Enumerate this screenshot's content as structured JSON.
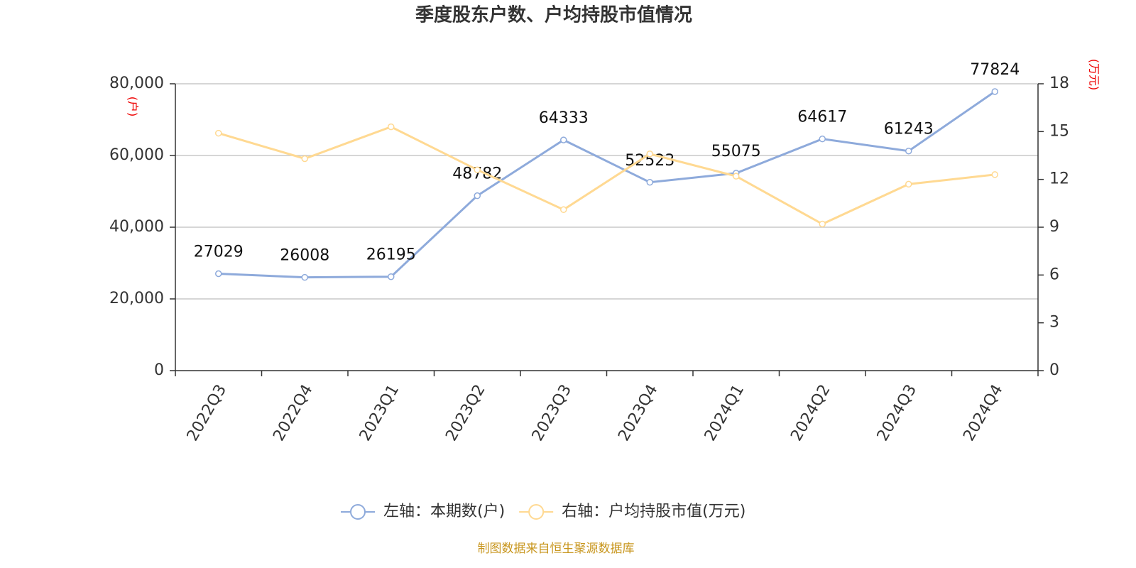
{
  "chart_data": {
    "type": "line",
    "title": "季度股东户数、户均持股市值情况",
    "categories": [
      "2022Q3",
      "2022Q4",
      "2023Q1",
      "2023Q2",
      "2023Q3",
      "2023Q4",
      "2024Q1",
      "2024Q2",
      "2024Q3",
      "2024Q4"
    ],
    "series": [
      {
        "name": "左轴：本期数(户)",
        "color": "#8eaadb",
        "axis": "y",
        "values": [
          27029,
          26008,
          26195,
          48782,
          64333,
          52523,
          55075,
          64617,
          61243,
          77824
        ],
        "show_labels": true
      },
      {
        "name": "右轴：户均持股市值(万元)",
        "color": "#ffd992",
        "axis": "y2",
        "values": [
          14.9,
          13.3,
          15.3,
          12.6,
          10.1,
          13.6,
          12.2,
          9.2,
          11.7,
          12.3
        ],
        "show_labels": false
      }
    ],
    "ylabel": "(户)",
    "y2label": "(万元)",
    "ylim": [
      0,
      80000
    ],
    "yticks": [
      0,
      {
        "value": 20000,
        "label": "20,000"
      },
      {
        "value": 40000,
        "label": "40,000"
      },
      {
        "value": 60000,
        "label": "60,000"
      },
      {
        "value": 80000,
        "label": "80,000"
      }
    ],
    "y2lim": [
      0,
      18
    ],
    "y2ticks": [
      0,
      3,
      6,
      9,
      12,
      15,
      18
    ],
    "grid": true,
    "legend": "bottom",
    "source": "制图数据来自恒生聚源数据库"
  }
}
